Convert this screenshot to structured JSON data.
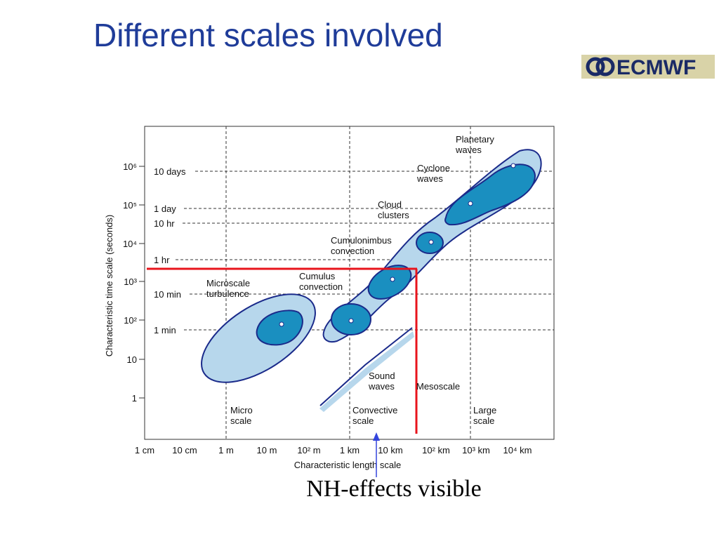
{
  "header": {
    "title": "Different scales involved",
    "logo": "ECMWF"
  },
  "diagram": {
    "y_axis_label": "Characteristic time scale (seconds)",
    "x_axis_label": "Characteristic length scale",
    "y_ticks": [
      "10⁶",
      "10⁵",
      "10⁴",
      "10³",
      "10²",
      "10",
      "1"
    ],
    "time_labels": [
      "10 days",
      "1 day",
      "10 hr",
      "1 hr",
      "10 min",
      "1 min"
    ],
    "x_ticks": [
      "1 cm",
      "10 cm",
      "1 m",
      "10 m",
      "10² m",
      "1 km",
      "10 km",
      "10² km",
      "10³ km",
      "10⁴ km"
    ],
    "phenomena": [
      [
        "Planetary",
        "waves"
      ],
      [
        "Cyclone",
        "waves"
      ],
      [
        "Cloud",
        "clusters"
      ],
      [
        "Cumulonimbus",
        "convection"
      ],
      [
        "Cumulus",
        "convection"
      ],
      [
        "Microscale",
        "turbulence"
      ],
      [
        "Sound",
        "waves"
      ]
    ],
    "regions": [
      [
        "Micro",
        "scale"
      ],
      [
        "Convective",
        "scale"
      ],
      [
        "Mesoscale"
      ],
      [
        "Large",
        "scale"
      ]
    ]
  },
  "annotation": "NH-effects visible"
}
